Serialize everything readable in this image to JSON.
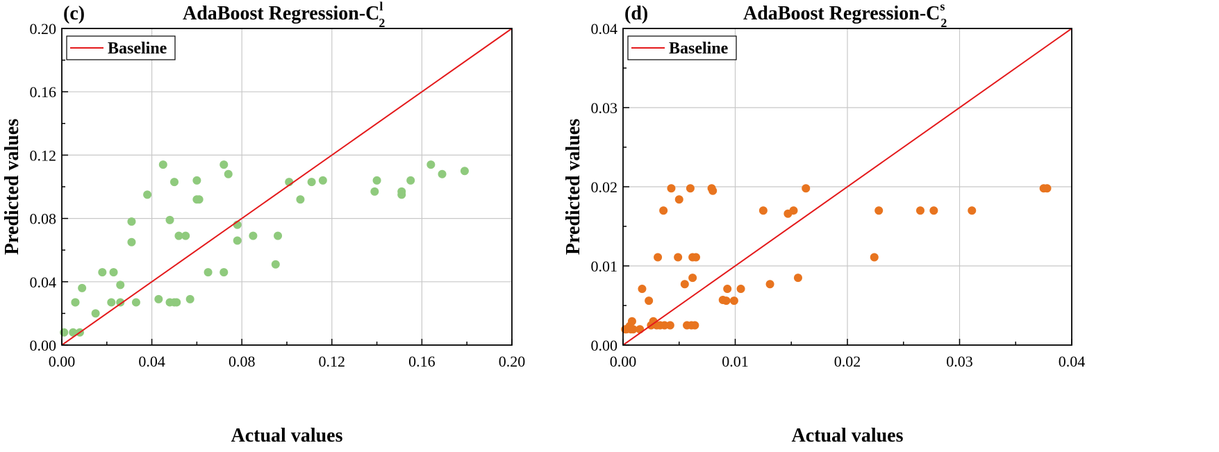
{
  "figure": {
    "panel_c_label": "(c)",
    "panel_d_label": "(d)"
  },
  "chart_data": [
    {
      "type": "scatter",
      "panel": "(c)",
      "title": {
        "main": "AdaBoost Regression-C",
        "sup": "l",
        "sub": "2"
      },
      "xlabel": "Actual values",
      "ylabel": "Predicted values",
      "xlim": [
        0,
        0.2
      ],
      "ylim": [
        0,
        0.2
      ],
      "xticks": [
        "0.00",
        "0.04",
        "0.08",
        "0.12",
        "0.16",
        "0.20"
      ],
      "yticks": [
        "0.00",
        "0.04",
        "0.08",
        "0.12",
        "0.16",
        "0.20"
      ],
      "grid": true,
      "legend": {
        "label": "Baseline",
        "position": "top-left"
      },
      "point_color": "#8fca7d",
      "baseline_color": "#e41a1c",
      "x": [
        0.001,
        0.005,
        0.006,
        0.006,
        0.008,
        0.009,
        0.015,
        0.018,
        0.022,
        0.023,
        0.026,
        0.026,
        0.031,
        0.031,
        0.033,
        0.038,
        0.043,
        0.045,
        0.048,
        0.048,
        0.05,
        0.05,
        0.051,
        0.052,
        0.055,
        0.057,
        0.06,
        0.06,
        0.061,
        0.065,
        0.072,
        0.072,
        0.074,
        0.078,
        0.078,
        0.085,
        0.095,
        0.096,
        0.101,
        0.106,
        0.111,
        0.116,
        0.139,
        0.14,
        0.151,
        0.151,
        0.155,
        0.164,
        0.169,
        0.179
      ],
      "y": [
        0.008,
        0.008,
        0.027,
        0.027,
        0.008,
        0.036,
        0.02,
        0.046,
        0.027,
        0.046,
        0.038,
        0.027,
        0.065,
        0.078,
        0.027,
        0.095,
        0.029,
        0.114,
        0.079,
        0.027,
        0.027,
        0.103,
        0.027,
        0.069,
        0.069,
        0.029,
        0.104,
        0.092,
        0.092,
        0.046,
        0.114,
        0.046,
        0.108,
        0.066,
        0.076,
        0.069,
        0.051,
        0.069,
        0.103,
        0.092,
        0.103,
        0.104,
        0.097,
        0.104,
        0.097,
        0.095,
        0.104,
        0.114,
        0.108,
        0.11
      ]
    },
    {
      "type": "scatter",
      "panel": "(d)",
      "title": {
        "main": "AdaBoost Regression-C",
        "sup": "s",
        "sub": "2"
      },
      "xlabel": "Actual values",
      "ylabel": "Predicted values",
      "xlim": [
        0,
        0.04
      ],
      "ylim": [
        0,
        0.04
      ],
      "xticks": [
        "0.00",
        "0.01",
        "0.02",
        "0.03",
        "0.04"
      ],
      "yticks": [
        "0.00",
        "0.01",
        "0.02",
        "0.03",
        "0.04"
      ],
      "grid": true,
      "legend": {
        "label": "Baseline",
        "position": "top-left"
      },
      "point_color": "#e8741f",
      "baseline_color": "#e41a1c",
      "x": [
        0.0002,
        0.0003,
        0.0006,
        0.0007,
        0.0008,
        0.0009,
        0.0015,
        0.0017,
        0.0023,
        0.0025,
        0.0027,
        0.003,
        0.0031,
        0.0033,
        0.0036,
        0.0037,
        0.0042,
        0.0043,
        0.0049,
        0.005,
        0.0055,
        0.0057,
        0.006,
        0.0061,
        0.0062,
        0.0062,
        0.0064,
        0.0065,
        0.0079,
        0.008,
        0.0089,
        0.0092,
        0.0093,
        0.0099,
        0.0105,
        0.0125,
        0.0131,
        0.0147,
        0.0152,
        0.0156,
        0.0163,
        0.0224,
        0.0228,
        0.0265,
        0.0277,
        0.0311,
        0.0375,
        0.0378
      ],
      "y": [
        0.002,
        0.002,
        0.0024,
        0.002,
        0.003,
        0.002,
        0.002,
        0.0071,
        0.0056,
        0.0025,
        0.003,
        0.0025,
        0.0111,
        0.0025,
        0.017,
        0.0025,
        0.0025,
        0.0198,
        0.0111,
        0.0184,
        0.0077,
        0.0025,
        0.0198,
        0.0025,
        0.0085,
        0.0111,
        0.0025,
        0.0111,
        0.0198,
        0.0195,
        0.0057,
        0.0056,
        0.0071,
        0.0056,
        0.0071,
        0.017,
        0.0077,
        0.0166,
        0.017,
        0.0085,
        0.0198,
        0.0111,
        0.017,
        0.017,
        0.017,
        0.017,
        0.0198,
        0.0198
      ]
    }
  ]
}
